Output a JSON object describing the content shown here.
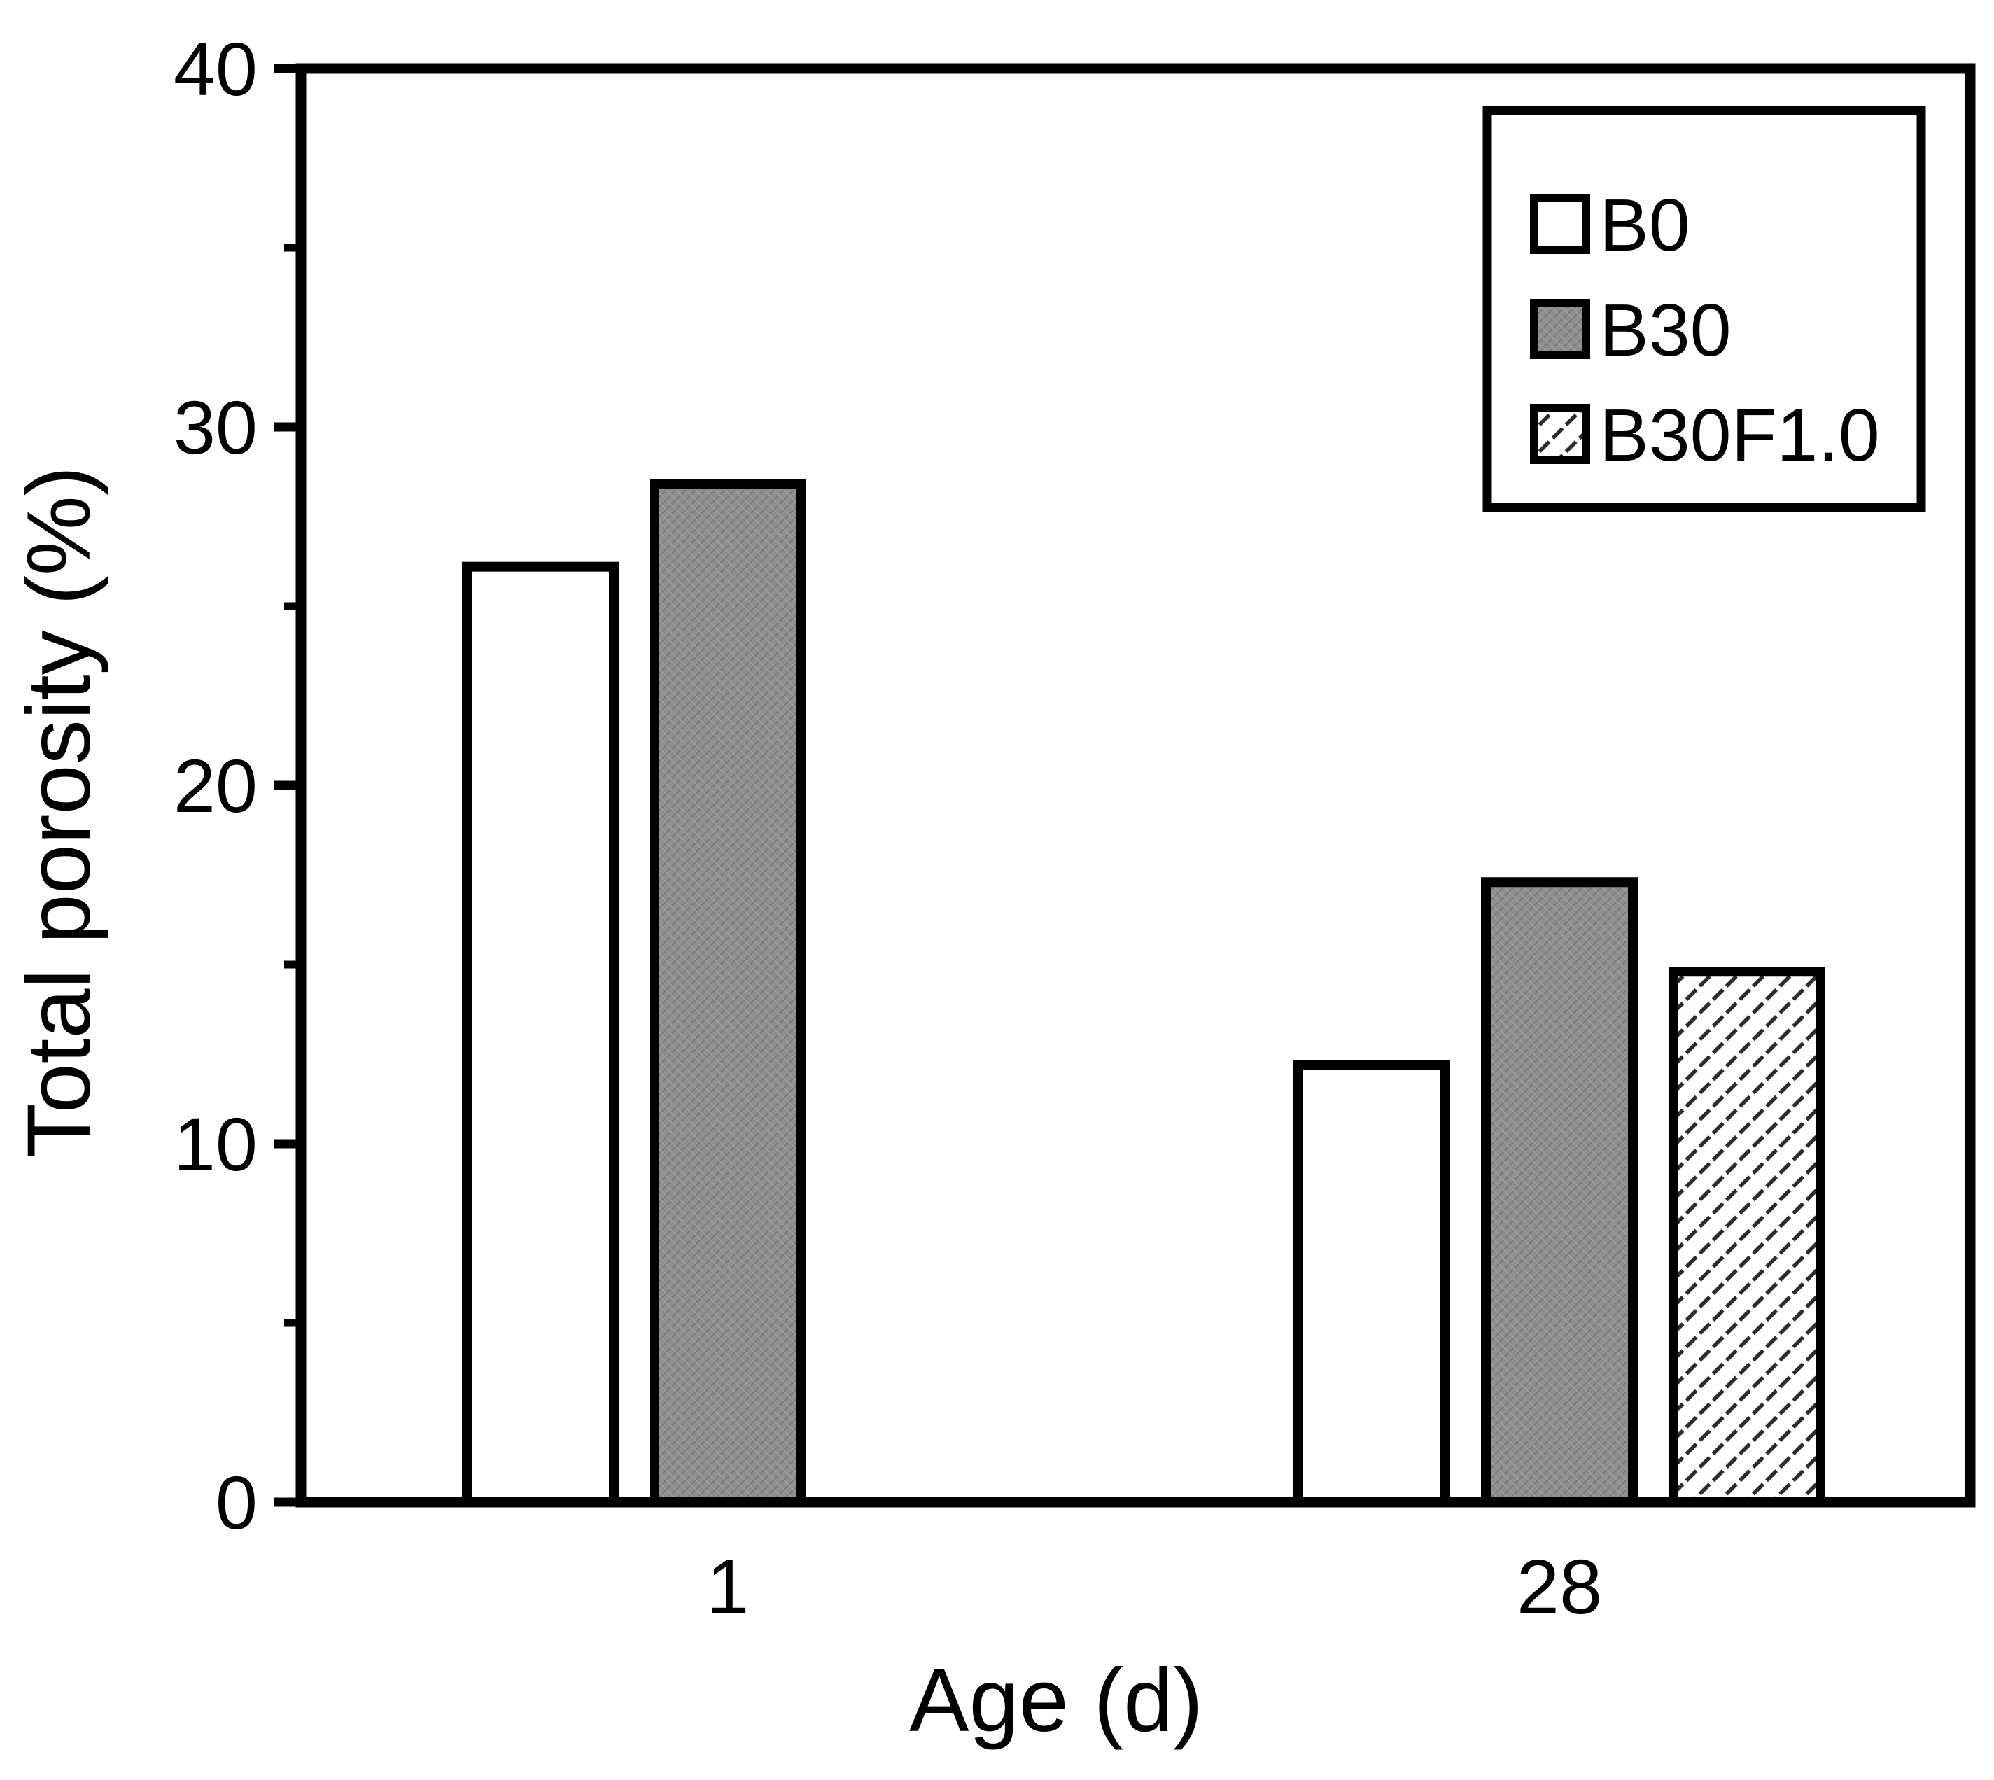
{
  "chart_data": {
    "type": "bar",
    "title": "",
    "xlabel": "Age (d)",
    "ylabel": "Total porosity (%)",
    "categories": [
      "1",
      "28"
    ],
    "series": [
      {
        "name": "B0",
        "style": "white",
        "values": [
          26.1,
          12.2
        ]
      },
      {
        "name": "B30",
        "style": "gray-textured",
        "values": [
          28.4,
          17.3
        ]
      },
      {
        "name": "B30F1.0",
        "style": "diagonal-hatch",
        "values": [
          null,
          14.8
        ]
      }
    ],
    "ylim": [
      0,
      40
    ],
    "y_major_ticks": [
      0,
      10,
      20,
      30,
      40
    ],
    "y_minor_ticks": [
      5,
      15,
      25,
      35
    ],
    "grid": false,
    "legend_position": "top-right",
    "legend_labels": [
      "B0",
      "B30",
      "B30F1.0"
    ]
  },
  "colors": {
    "background": "#ffffff",
    "axis": "#000000",
    "bar_white_fill": "#ffffff",
    "bar_gray_fill": "#8f8f8f",
    "bar_gray_texture": "#7d7d7d",
    "hatch_line": "#2b2b2b",
    "text": "#000000"
  }
}
